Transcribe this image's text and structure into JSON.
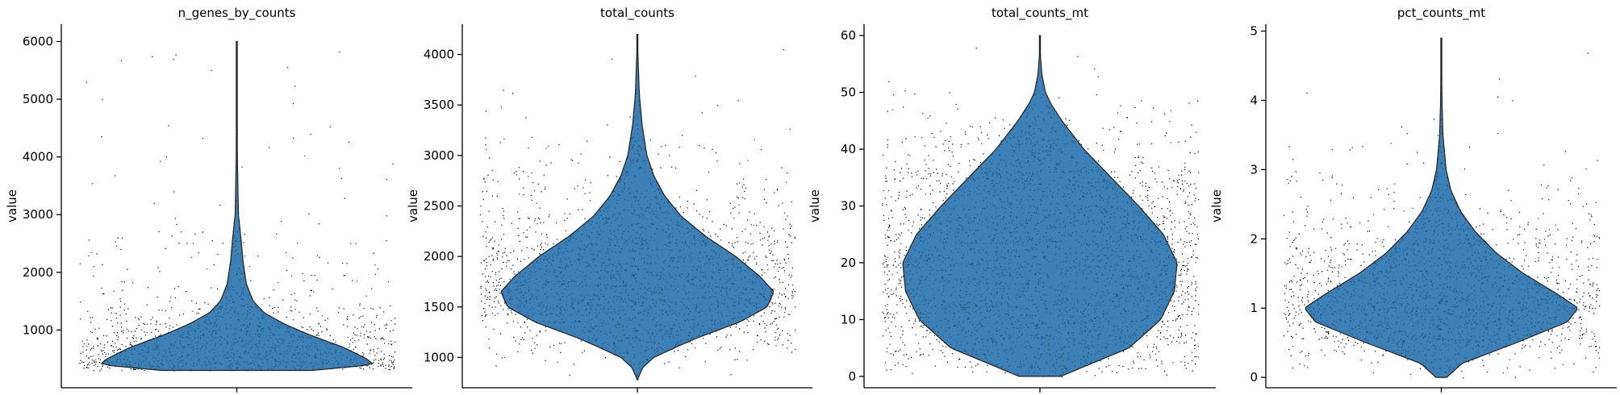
{
  "chart_data": [
    {
      "type": "violin",
      "title": "n_genes_by_counts",
      "ylabel": "value",
      "ylim": [
        0,
        6300
      ],
      "yticks": [
        1000,
        2000,
        3000,
        4000,
        5000,
        6000
      ],
      "data_range": [
        300,
        6000
      ],
      "median": 700,
      "density": [
        [
          300,
          0.55
        ],
        [
          400,
          1.0
        ],
        [
          500,
          0.95
        ],
        [
          700,
          0.78
        ],
        [
          900,
          0.55
        ],
        [
          1100,
          0.35
        ],
        [
          1300,
          0.2
        ],
        [
          1500,
          0.12
        ],
        [
          1800,
          0.07
        ],
        [
          2200,
          0.045
        ],
        [
          2600,
          0.03
        ],
        [
          3000,
          0.012
        ],
        [
          4000,
          0.004
        ],
        [
          5000,
          0.002
        ],
        [
          6000,
          0.0
        ]
      ],
      "point_min": 300,
      "point_max": 5900,
      "color": "#2b75b0"
    },
    {
      "type": "violin",
      "title": "total_counts",
      "ylabel": "value",
      "ylim": [
        700,
        4300
      ],
      "yticks": [
        1000,
        1500,
        2000,
        2500,
        3000,
        3500,
        4000
      ],
      "data_range": [
        780,
        4200
      ],
      "median": 1650,
      "density": [
        [
          780,
          0.0
        ],
        [
          900,
          0.04
        ],
        [
          1000,
          0.12
        ],
        [
          1100,
          0.28
        ],
        [
          1200,
          0.45
        ],
        [
          1350,
          0.75
        ],
        [
          1500,
          0.95
        ],
        [
          1650,
          1.0
        ],
        [
          1800,
          0.9
        ],
        [
          2000,
          0.72
        ],
        [
          2200,
          0.5
        ],
        [
          2400,
          0.32
        ],
        [
          2600,
          0.2
        ],
        [
          2800,
          0.12
        ],
        [
          3000,
          0.07
        ],
        [
          3300,
          0.035
        ],
        [
          3600,
          0.015
        ],
        [
          4000,
          0.004
        ],
        [
          4200,
          0.0
        ]
      ],
      "point_min": 780,
      "point_max": 4200,
      "color": "#2b75b0"
    },
    {
      "type": "violin",
      "title": "total_counts_mt",
      "ylabel": "value",
      "ylim": [
        -2,
        62
      ],
      "yticks": [
        0,
        10,
        20,
        30,
        40,
        50,
        60
      ],
      "data_range": [
        0,
        60
      ],
      "median": 20,
      "density": [
        [
          0,
          0.15
        ],
        [
          2,
          0.35
        ],
        [
          5,
          0.65
        ],
        [
          10,
          0.88
        ],
        [
          15,
          0.98
        ],
        [
          20,
          1.0
        ],
        [
          25,
          0.9
        ],
        [
          30,
          0.72
        ],
        [
          35,
          0.52
        ],
        [
          40,
          0.32
        ],
        [
          45,
          0.16
        ],
        [
          48,
          0.08
        ],
        [
          50,
          0.04
        ],
        [
          53,
          0.015
        ],
        [
          56,
          0.005
        ],
        [
          60,
          0.0
        ]
      ],
      "point_min": 0,
      "point_max": 60,
      "color": "#2b75b0"
    },
    {
      "type": "violin",
      "title": "pct_counts_mt",
      "ylabel": "value",
      "ylim": [
        -0.15,
        5.1
      ],
      "yticks": [
        0,
        1,
        2,
        3,
        4,
        5
      ],
      "data_range": [
        0,
        4.9
      ],
      "median": 1.0,
      "density": [
        [
          0,
          0.04
        ],
        [
          0.2,
          0.15
        ],
        [
          0.5,
          0.55
        ],
        [
          0.8,
          0.92
        ],
        [
          1.0,
          1.0
        ],
        [
          1.2,
          0.85
        ],
        [
          1.5,
          0.6
        ],
        [
          1.8,
          0.4
        ],
        [
          2.1,
          0.25
        ],
        [
          2.4,
          0.14
        ],
        [
          2.7,
          0.07
        ],
        [
          3.0,
          0.035
        ],
        [
          3.5,
          0.012
        ],
        [
          4.0,
          0.005
        ],
        [
          4.9,
          0.0
        ]
      ],
      "point_min": 0,
      "point_max": 4.9,
      "color": "#2b75b0"
    }
  ]
}
